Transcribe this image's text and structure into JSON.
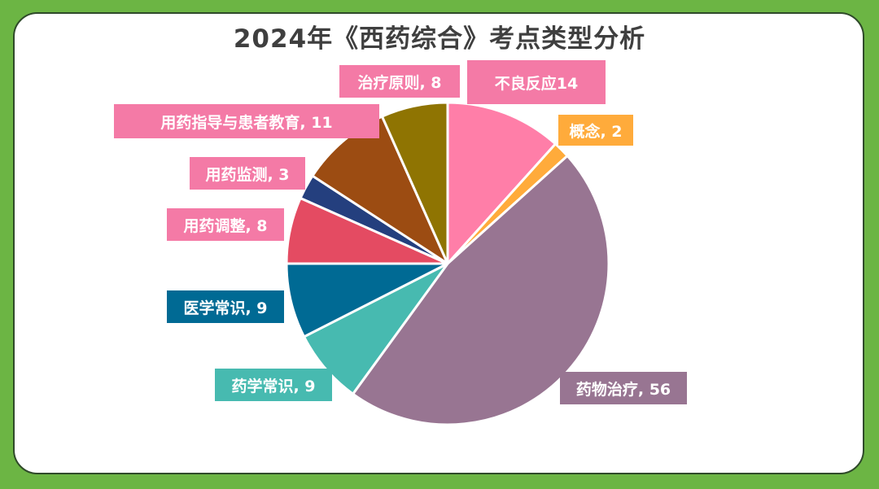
{
  "title": "2024年《西药综合》考点类型分析",
  "chart_data": {
    "type": "pie",
    "title": "2024年《西药综合》考点类型分析",
    "slices": [
      {
        "name": "不良反应",
        "value": 14,
        "color": "#ff7ea8",
        "label": "不良反应14",
        "label_color": "#f47aa6"
      },
      {
        "name": "概念",
        "value": 2,
        "color": "#ffab3b",
        "label": "概念, 2",
        "label_color": "#ffab3b"
      },
      {
        "name": "药物治疗",
        "value": 56,
        "color": "#987592",
        "label": "药物治疗, 56",
        "label_color": "#987592"
      },
      {
        "name": "药学常识",
        "value": 9,
        "color": "#47bab0",
        "label": "药学常识, 9",
        "label_color": "#47bab0"
      },
      {
        "name": "医学常识",
        "value": 9,
        "color": "#006a94",
        "label": "医学常识, 9",
        "label_color": "#006a94"
      },
      {
        "name": "用药调整",
        "value": 8,
        "color": "#e44b62",
        "label": "用药调整, 8",
        "label_color": "#f47aa6"
      },
      {
        "name": "用药监测",
        "value": 3,
        "color": "#243f7e",
        "label": "用药监测, 3",
        "label_color": "#f47aa6"
      },
      {
        "name": "用药指导与患者教育",
        "value": 11,
        "color": "#9c4c12",
        "label": "用药指导与患者教育, 11",
        "label_color": "#f47aa6"
      },
      {
        "name": "治疗原则",
        "value": 8,
        "color": "#8f7402",
        "label": "治疗原则, 8",
        "label_color": "#f47aa6"
      }
    ]
  }
}
